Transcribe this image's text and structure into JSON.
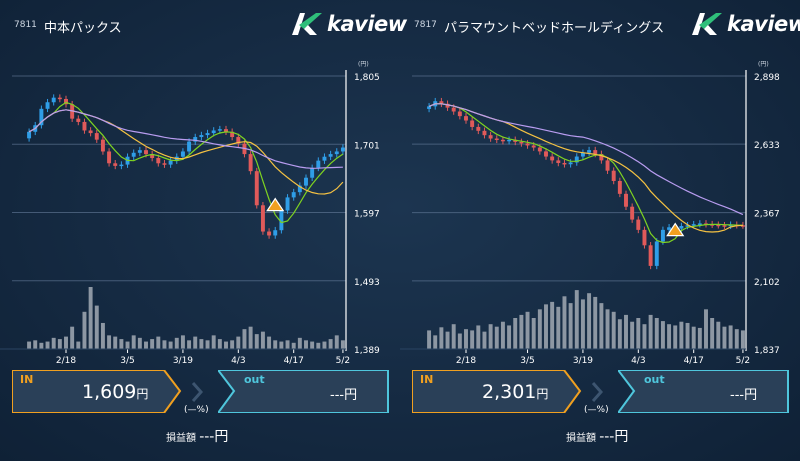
{
  "left": {
    "code": "7811",
    "name": "中本パックス",
    "unit": "(円)",
    "yticks": [
      "1,805",
      "1,701",
      "1,597",
      "1,493",
      "1,389"
    ],
    "xticks": [
      "2/18",
      "3/5",
      "3/19",
      "4/3",
      "4/17",
      "5/2"
    ],
    "in_label": "IN",
    "in_price": "1,609",
    "yen": "円",
    "out_label": "out",
    "out_value": "---",
    "pct": "(—%)",
    "pnl_label": "損益額",
    "pnl_value": "---円"
  },
  "right": {
    "code": "7817",
    "name": "パラマウントベッドホールディングス",
    "unit": "(円)",
    "yticks": [
      "2,898",
      "2,633",
      "2,367",
      "2,102",
      "1,837"
    ],
    "xticks": [
      "2/18",
      "3/5",
      "3/19",
      "4/3",
      "4/17",
      "5/2"
    ],
    "in_label": "IN",
    "in_price": "2,301",
    "yen": "円",
    "out_label": "out",
    "out_value": "---",
    "pct": "(—%)",
    "pnl_label": "損益額",
    "pnl_value": "---円"
  },
  "brand": "kaview",
  "colors": {
    "up": "#2f9ee8",
    "down": "#e05a5a",
    "in": "#f0a020",
    "out": "#4fc6dc",
    "ma_short": "#7ed321",
    "ma_mid": "#f5c242",
    "ma_long": "#b89cf0"
  },
  "chart_data": [
    {
      "type": "candlestick",
      "title": "中本パックス",
      "ylim": [
        1389,
        1805
      ],
      "yticks": [
        1805,
        1701,
        1597,
        1493,
        1389
      ],
      "xticks": [
        "2/18",
        "3/5",
        "3/19",
        "4/3",
        "4/17",
        "5/2"
      ],
      "closes": [
        1720,
        1730,
        1755,
        1765,
        1772,
        1770,
        1762,
        1740,
        1735,
        1722,
        1718,
        1708,
        1690,
        1672,
        1668,
        1670,
        1682,
        1688,
        1692,
        1686,
        1680,
        1672,
        1670,
        1676,
        1682,
        1690,
        1705,
        1712,
        1715,
        1718,
        1722,
        1724,
        1720,
        1712,
        1702,
        1686,
        1660,
        1608,
        1568,
        1562,
        1570,
        1600,
        1620,
        1628,
        1638,
        1650,
        1665,
        1676,
        1682,
        1686,
        1690,
        1696
      ],
      "volumes": [
        0.12,
        0.14,
        0.1,
        0.12,
        0.18,
        0.16,
        0.2,
        0.36,
        0.12,
        0.6,
        1.0,
        0.7,
        0.42,
        0.22,
        0.2,
        0.16,
        0.12,
        0.22,
        0.18,
        0.12,
        0.16,
        0.2,
        0.14,
        0.12,
        0.18,
        0.22,
        0.14,
        0.2,
        0.16,
        0.14,
        0.22,
        0.16,
        0.12,
        0.14,
        0.2,
        0.32,
        0.36,
        0.24,
        0.28,
        0.2,
        0.14,
        0.12,
        0.14,
        0.1,
        0.18,
        0.14,
        0.12,
        0.1,
        0.12,
        0.16,
        0.22,
        0.14
      ],
      "in_marker": {
        "x": "4/10",
        "y": 1609
      }
    },
    {
      "type": "candlestick",
      "title": "パラマウントベッドホールディングス",
      "ylim": [
        1837,
        2898
      ],
      "yticks": [
        2898,
        2633,
        2367,
        2102,
        1837
      ],
      "xticks": [
        "2/18",
        "3/5",
        "3/19",
        "4/3",
        "4/17",
        "5/2"
      ],
      "closes": [
        2780,
        2800,
        2790,
        2775,
        2760,
        2742,
        2725,
        2700,
        2685,
        2668,
        2655,
        2650,
        2645,
        2650,
        2642,
        2636,
        2628,
        2620,
        2605,
        2585,
        2570,
        2560,
        2555,
        2562,
        2585,
        2600,
        2610,
        2595,
        2570,
        2530,
        2490,
        2440,
        2390,
        2340,
        2300,
        2240,
        2160,
        2255,
        2300,
        2310,
        2305,
        2315,
        2318,
        2322,
        2325,
        2322,
        2320,
        2318,
        2316,
        2320,
        2318,
        2317
      ],
      "volumes": [
        0.3,
        0.22,
        0.35,
        0.28,
        0.4,
        0.25,
        0.32,
        0.3,
        0.38,
        0.28,
        0.4,
        0.36,
        0.44,
        0.38,
        0.5,
        0.55,
        0.6,
        0.5,
        0.64,
        0.72,
        0.76,
        0.68,
        0.85,
        0.74,
        0.95,
        0.8,
        0.9,
        0.84,
        0.74,
        0.64,
        0.6,
        0.48,
        0.55,
        0.44,
        0.5,
        0.4,
        0.55,
        0.5,
        0.45,
        0.4,
        0.38,
        0.44,
        0.42,
        0.36,
        0.34,
        0.64,
        0.5,
        0.44,
        0.36,
        0.38,
        0.32,
        0.3
      ],
      "in_marker": {
        "x": "4/10",
        "y": 2301
      }
    }
  ]
}
